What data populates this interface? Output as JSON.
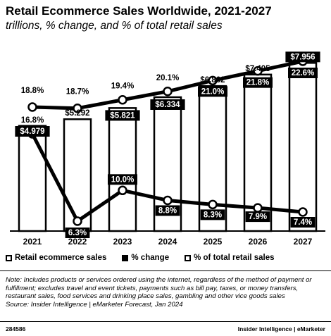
{
  "title": "Retail Ecommerce Sales Worldwide, 2021-2027",
  "subtitle": "trillions, % change, and % of total retail sales",
  "legend": {
    "sales": "Retail ecommerce sales",
    "change": "% change",
    "share": "% of total retail sales"
  },
  "note": "Note: Includes products or services ordered using the internet, regardless of the method of payment or fulfillment; excludes travel and event tickets, payments such as bill pay, taxes, or money transfers, restaurant sales, food services and drinking place sales, gambling and other vice goods sales",
  "source": "Source: Insider Intelligence | eMarketer Forecast, Jan 2024",
  "footer": {
    "id": "284586",
    "brand": "Insider Intelligence | eMarketer"
  },
  "chart_data": {
    "type": "bar",
    "categories": [
      "2021",
      "2022",
      "2023",
      "2024",
      "2025",
      "2026",
      "2027"
    ],
    "series": [
      {
        "name": "Retail ecommerce sales",
        "type": "bar",
        "values": [
          4.979,
          5.292,
          5.821,
          6.334,
          6.862,
          7.405,
          7.956
        ],
        "labels": [
          "$4.979",
          "$5.292",
          "$5.821",
          "$6.334",
          "$6.862",
          "$7.405",
          "$7.956"
        ]
      },
      {
        "name": "% change",
        "type": "line",
        "values": [
          16.8,
          6.3,
          10.0,
          8.8,
          8.3,
          7.9,
          7.4
        ],
        "labels": [
          "16.8%",
          "6.3%",
          "10.0%",
          "8.8%",
          "8.3%",
          "7.9%",
          "7.4%"
        ]
      },
      {
        "name": "% of total retail sales",
        "type": "line",
        "values": [
          18.8,
          18.7,
          19.4,
          20.1,
          21.0,
          21.8,
          22.6
        ],
        "labels": [
          "18.8%",
          "18.7%",
          "19.4%",
          "20.1%",
          "21.0%",
          "21.8%",
          "22.6%"
        ]
      }
    ]
  }
}
